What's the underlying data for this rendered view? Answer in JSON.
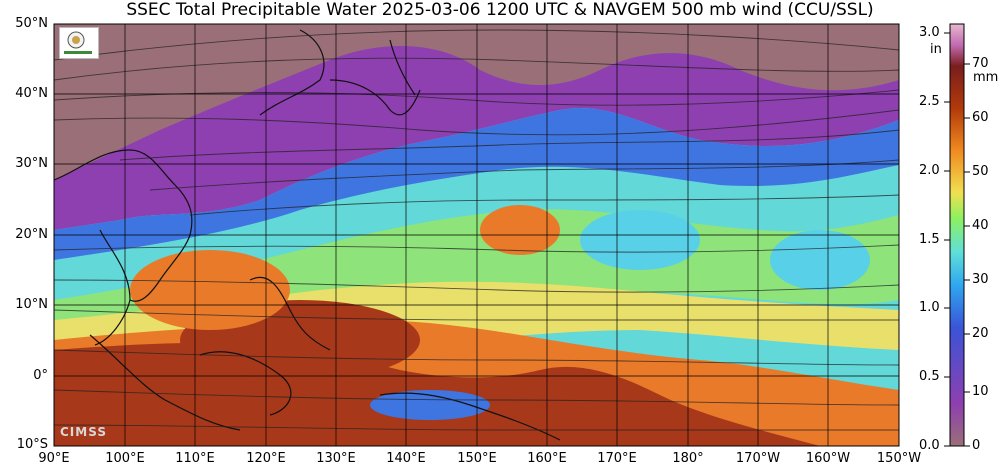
{
  "title": "SSEC Total Precipitable Water  2025-03-06 1200 UTC & NAVGEM 500 mb wind (CCU/SSL)",
  "lat_labels": [
    "50°N",
    "40°N",
    "30°N",
    "20°N",
    "10°N",
    "0°",
    "10°S"
  ],
  "lon_labels": [
    "90°E",
    "100°E",
    "110°E",
    "120°E",
    "130°E",
    "140°E",
    "150°E",
    "160°E",
    "170°E",
    "180°",
    "170°W",
    "160°W",
    "150°W"
  ],
  "colorbar": {
    "inch_unit": "in",
    "mm_unit": "mm",
    "inch_ticks": [
      "3.0",
      "2.5",
      "2.0",
      "1.5",
      "1.0",
      "0.5",
      "0.0"
    ],
    "mm_ticks": [
      "70",
      "60",
      "50",
      "40",
      "30",
      "20",
      "10",
      "0"
    ],
    "colors": [
      "#a07a70",
      "#8a3aa8",
      "#3a54d8",
      "#2fa6f0",
      "#5fe0d8",
      "#8ef060",
      "#f0e050",
      "#f08a20",
      "#b23a0a",
      "#7a1d1d",
      "#c26ab0",
      "#e8b8d0"
    ]
  },
  "logos": {
    "cimss": "CIMSS"
  },
  "legend_colors": {
    "dry": "#9a6f78",
    "purple": "#8e3fb0",
    "blue": "#3f75e0",
    "cyan": "#58d0e8",
    "green": "#8ee47a",
    "yellow": "#e8e06a",
    "orange": "#e87a2a",
    "brown": "#a8381a"
  }
}
